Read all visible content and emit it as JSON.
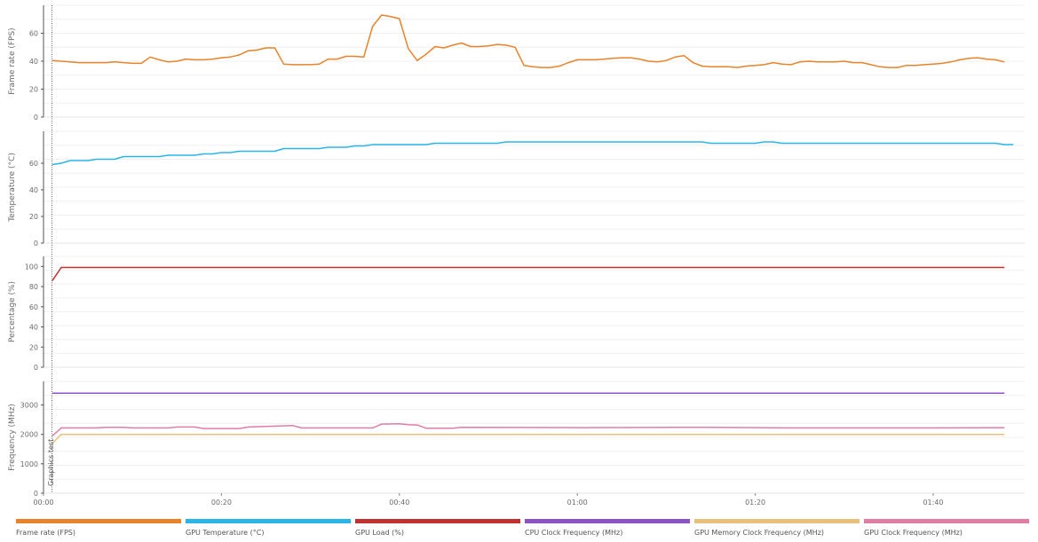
{
  "chart_data": {
    "type": "line",
    "x_unit": "seconds",
    "x_ticks": [
      {
        "value": 0,
        "label": "00:00"
      },
      {
        "value": 20,
        "label": "00:20"
      },
      {
        "value": 40,
        "label": "00:40"
      },
      {
        "value": 60,
        "label": "01:00"
      },
      {
        "value": 80,
        "label": "01:20"
      },
      {
        "value": 100,
        "label": "01:40"
      }
    ],
    "xlim": [
      0,
      111
    ],
    "marker": {
      "x": 1,
      "label": "Graphics test"
    },
    "panels": [
      {
        "ylabel": "Frame rate (FPS)",
        "ylim": [
          0,
          80
        ],
        "yticks": [
          0,
          20,
          40,
          60
        ],
        "series": [
          {
            "name": "Frame rate (FPS)",
            "color": "#e8832a",
            "points": [
              [
                1,
                40.5
              ],
              [
                2,
                40
              ],
              [
                3,
                39.5
              ],
              [
                4,
                39
              ],
              [
                5,
                39
              ],
              [
                6,
                39
              ],
              [
                7,
                39
              ],
              [
                8,
                39.5
              ],
              [
                9,
                39
              ],
              [
                10,
                38.5
              ],
              [
                11,
                38.5
              ],
              [
                12,
                43
              ],
              [
                13,
                41
              ],
              [
                14,
                39.5
              ],
              [
                15,
                40
              ],
              [
                16,
                41.5
              ],
              [
                17,
                41
              ],
              [
                18,
                41
              ],
              [
                19,
                41.5
              ],
              [
                20,
                42.5
              ],
              [
                21,
                43
              ],
              [
                22,
                44.5
              ],
              [
                23,
                47.5
              ],
              [
                24,
                48
              ],
              [
                25,
                49.5
              ],
              [
                26,
                49.5
              ],
              [
                27,
                38
              ],
              [
                28,
                37.5
              ],
              [
                29,
                37.5
              ],
              [
                30,
                37.5
              ],
              [
                31,
                38
              ],
              [
                32,
                41.5
              ],
              [
                33,
                41.5
              ],
              [
                34,
                43.5
              ],
              [
                35,
                43.5
              ],
              [
                36,
                43
              ],
              [
                37,
                65
              ],
              [
                38,
                73
              ],
              [
                39,
                72
              ],
              [
                40,
                70.5
              ],
              [
                41,
                49
              ],
              [
                42,
                40.5
              ],
              [
                43,
                45
              ],
              [
                44,
                50.5
              ],
              [
                45,
                49.5
              ],
              [
                46,
                51.5
              ],
              [
                47,
                53
              ],
              [
                48,
                50.5
              ],
              [
                49,
                50.5
              ],
              [
                50,
                51
              ],
              [
                51,
                52
              ],
              [
                52,
                51.5
              ],
              [
                53,
                50
              ],
              [
                54,
                37
              ],
              [
                55,
                36
              ],
              [
                56,
                35.5
              ],
              [
                57,
                35.5
              ],
              [
                58,
                36.5
              ],
              [
                59,
                39
              ],
              [
                60,
                41
              ],
              [
                61,
                41
              ],
              [
                62,
                41
              ],
              [
                63,
                41.5
              ],
              [
                64,
                42
              ],
              [
                65,
                42.5
              ],
              [
                66,
                42.5
              ],
              [
                67,
                41.5
              ],
              [
                68,
                40
              ],
              [
                69,
                39.5
              ],
              [
                70,
                40.5
              ],
              [
                71,
                43
              ],
              [
                72,
                44
              ],
              [
                73,
                39
              ],
              [
                74,
                36.5
              ],
              [
                75,
                36
              ],
              [
                76,
                36
              ],
              [
                77,
                36
              ],
              [
                78,
                35.5
              ],
              [
                79,
                36.5
              ],
              [
                80,
                37
              ],
              [
                81,
                37.5
              ],
              [
                82,
                39
              ],
              [
                83,
                38
              ],
              [
                84,
                37.5
              ],
              [
                85,
                39.5
              ],
              [
                86,
                40
              ],
              [
                87,
                39.5
              ],
              [
                88,
                39.5
              ],
              [
                89,
                39.5
              ],
              [
                90,
                40
              ],
              [
                91,
                39
              ],
              [
                92,
                39
              ],
              [
                93,
                37.5
              ],
              [
                94,
                36
              ],
              [
                95,
                35.5
              ],
              [
                96,
                35.5
              ],
              [
                97,
                37
              ],
              [
                98,
                37
              ],
              [
                99,
                37.5
              ],
              [
                100,
                38
              ],
              [
                101,
                38.5
              ],
              [
                102,
                39.5
              ],
              [
                103,
                41
              ],
              [
                104,
                42
              ],
              [
                105,
                42.5
              ],
              [
                106,
                41.5
              ],
              [
                107,
                41
              ],
              [
                108,
                39.5
              ]
            ]
          }
        ]
      },
      {
        "ylabel": "Temperature (°C)",
        "ylim": [
          0,
          84
        ],
        "yticks": [
          0,
          20,
          40,
          60
        ],
        "series": [
          {
            "name": "GPU Temperature (°C)",
            "color": "#2ab5e8",
            "points": [
              [
                1,
                59
              ],
              [
                2,
                60
              ],
              [
                3,
                62
              ],
              [
                5,
                62
              ],
              [
                6,
                63
              ],
              [
                8,
                63
              ],
              [
                9,
                65
              ],
              [
                13,
                65
              ],
              [
                14,
                66
              ],
              [
                17,
                66
              ],
              [
                18,
                67
              ],
              [
                19,
                67
              ],
              [
                20,
                68
              ],
              [
                21,
                68
              ],
              [
                22,
                69
              ],
              [
                26,
                69
              ],
              [
                27,
                71
              ],
              [
                31,
                71
              ],
              [
                32,
                72
              ],
              [
                34,
                72
              ],
              [
                35,
                73
              ],
              [
                36,
                73
              ],
              [
                37,
                74
              ],
              [
                43,
                74
              ],
              [
                44,
                75
              ],
              [
                51,
                75
              ],
              [
                52,
                76
              ],
              [
                74,
                76
              ],
              [
                75,
                75
              ],
              [
                80,
                75
              ],
              [
                81,
                76
              ],
              [
                82,
                76
              ],
              [
                83,
                75
              ],
              [
                107,
                75
              ],
              [
                108,
                74
              ],
              [
                109,
                74
              ]
            ]
          }
        ]
      },
      {
        "ylabel": "Percentage (%)",
        "ylim": [
          0,
          110
        ],
        "yticks": [
          0,
          20,
          40,
          60,
          80,
          100
        ],
        "series": [
          {
            "name": "GPU Load (%)",
            "color": "#c0312f",
            "points": [
              [
                1,
                86
              ],
              [
                2,
                99
              ],
              [
                108,
                99
              ]
            ]
          }
        ]
      },
      {
        "ylabel": "Frequency (MHz)",
        "ylim": [
          0,
          3800
        ],
        "yticks": [
          0,
          1000,
          2000,
          3000
        ],
        "series": [
          {
            "name": "CPU Clock Frequency (MHz)",
            "color": "#8e52c7",
            "points": [
              [
                1,
                3400
              ],
              [
                108,
                3400
              ]
            ]
          },
          {
            "name": "GPU Memory Clock Frequency (MHz)",
            "color": "#e8c07a",
            "points": [
              [
                1,
                1700
              ],
              [
                2,
                2000
              ],
              [
                108,
                2000
              ]
            ]
          },
          {
            "name": "GPU Clock Frequency (MHz)",
            "color": "#e07ea6",
            "points": [
              [
                1,
                1950
              ],
              [
                2,
                2220
              ],
              [
                6,
                2220
              ],
              [
                7,
                2240
              ],
              [
                9,
                2240
              ],
              [
                10,
                2220
              ],
              [
                14,
                2220
              ],
              [
                15,
                2250
              ],
              [
                17,
                2250
              ],
              [
                18,
                2200
              ],
              [
                22,
                2200
              ],
              [
                23,
                2250
              ],
              [
                26,
                2280
              ],
              [
                28,
                2300
              ],
              [
                29,
                2220
              ],
              [
                37,
                2220
              ],
              [
                38,
                2350
              ],
              [
                40,
                2360
              ],
              [
                41,
                2330
              ],
              [
                42,
                2320
              ],
              [
                43,
                2210
              ],
              [
                46,
                2210
              ],
              [
                47,
                2240
              ],
              [
                60,
                2230
              ],
              [
                75,
                2240
              ],
              [
                85,
                2220
              ],
              [
                100,
                2220
              ],
              [
                108,
                2230
              ]
            ]
          }
        ]
      }
    ],
    "legend": {
      "position": "bottom",
      "items": [
        {
          "name": "Frame rate (FPS)",
          "color": "#e8832a"
        },
        {
          "name": "GPU Temperature (°C)",
          "color": "#2ab5e8"
        },
        {
          "name": "GPU Load (%)",
          "color": "#c0312f"
        },
        {
          "name": "CPU Clock Frequency (MHz)",
          "color": "#8e52c7"
        },
        {
          "name": "GPU Memory Clock Frequency (MHz)",
          "color": "#e8c07a"
        },
        {
          "name": "GPU Clock Frequency (MHz)",
          "color": "#e07ea6"
        }
      ]
    },
    "grid": true
  }
}
